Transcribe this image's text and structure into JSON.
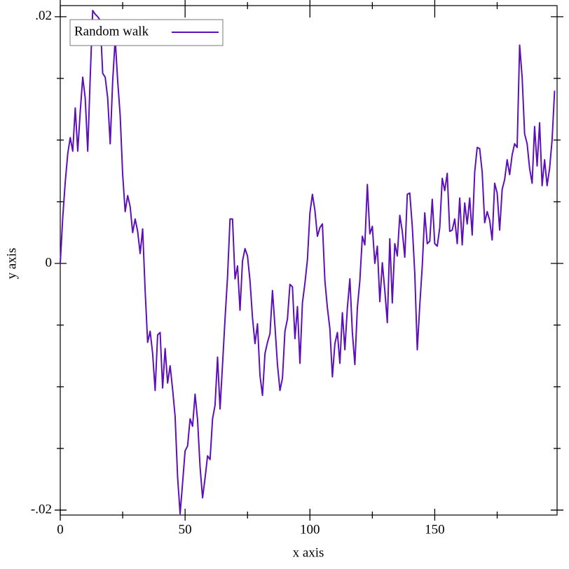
{
  "chart_data": {
    "type": "line",
    "x_label": "x axis",
    "y_label": "y axis",
    "x": [
      0,
      1,
      2,
      3,
      4,
      5,
      6,
      7,
      8,
      9,
      10,
      11,
      12,
      13,
      14,
      15,
      16,
      17,
      18,
      19,
      20,
      21,
      22,
      23,
      24,
      25,
      26,
      27,
      28,
      29,
      30,
      31,
      32,
      33,
      34,
      35,
      36,
      37,
      38,
      39,
      40,
      41,
      42,
      43,
      44,
      45,
      46,
      47,
      48,
      49,
      50,
      51,
      52,
      53,
      54,
      55,
      56,
      57,
      58,
      59,
      60,
      61,
      62,
      63,
      64,
      65,
      66,
      67,
      68,
      69,
      70,
      71,
      72,
      73,
      74,
      75,
      76,
      77,
      78,
      79,
      80,
      81,
      82,
      83,
      84,
      85,
      86,
      87,
      88,
      89,
      90,
      91,
      92,
      93,
      94,
      95,
      96,
      97,
      98,
      99,
      100,
      101,
      102,
      103,
      104,
      105,
      106,
      107,
      108,
      109,
      110,
      111,
      112,
      113,
      114,
      115,
      116,
      117,
      118,
      119,
      120,
      121,
      122,
      123,
      124,
      125,
      126,
      127,
      128,
      129,
      130,
      131,
      132,
      133,
      134,
      135,
      136,
      137,
      138,
      139,
      140,
      141,
      142,
      143,
      144,
      145,
      146,
      147,
      148,
      149,
      150,
      151,
      152,
      153,
      154,
      155,
      156,
      157,
      158,
      159,
      160,
      161,
      162,
      163,
      164,
      165,
      166,
      167,
      168,
      169,
      170,
      171,
      172,
      173,
      174,
      175,
      176,
      177,
      178,
      179,
      180,
      181,
      182,
      183,
      184,
      185,
      186,
      187,
      188,
      189,
      190,
      191,
      192,
      193,
      194,
      195,
      196,
      197,
      198
    ],
    "series": [
      {
        "name": "Random walk",
        "color": "#5c10b8",
        "values": [
          0,
          0.00375,
          0.0066,
          0.0089,
          0.0102,
          0.0091,
          0.0126,
          0.0091,
          0.0123,
          0.0151,
          0.0134,
          0.0091,
          0.0151,
          0.0205,
          0.0202,
          0.02,
          0.0197,
          0.0154,
          0.0151,
          0.0134,
          0.0097,
          0.0148,
          0.0182,
          0.0148,
          0.012,
          0.0072,
          0.0042,
          0.0055,
          0.0046,
          0.0025,
          0.0036,
          0.0026,
          0.0008,
          0.0028,
          -0.0022,
          -0.0064,
          -0.0055,
          -0.0073,
          -0.0103,
          -0.0058,
          -0.0056,
          -0.0101,
          -0.0069,
          -0.0097,
          -0.0083,
          -0.0102,
          -0.0124,
          -0.0173,
          -0.0203,
          -0.0178,
          -0.0152,
          -0.0148,
          -0.0126,
          -0.0132,
          -0.0106,
          -0.0127,
          -0.0165,
          -0.019,
          -0.0174,
          -0.0156,
          -0.0159,
          -0.0126,
          -0.0115,
          -0.0076,
          -0.0118,
          -0.0082,
          -0.0045,
          -0.0011,
          0.0036,
          0.0036,
          -0.00125,
          -0.0002,
          -0.0038,
          0.0002,
          0.0012,
          0.0006,
          -0.0014,
          -0.0044,
          -0.0065,
          -0.0049,
          -0.0091,
          -0.0107,
          -0.0073,
          -0.0064,
          -0.0057,
          -0.0022,
          -0.0051,
          -0.0082,
          -0.0103,
          -0.0093,
          -0.0055,
          -0.0045,
          -0.0017,
          -0.0019,
          -0.0061,
          -0.0035,
          -0.0081,
          -0.0032,
          -0.0016,
          0.0003,
          0.0041,
          0.0056,
          0.0043,
          0.0022,
          0.0029,
          0.0032,
          -0.0014,
          -0.0036,
          -0.0053,
          -0.0092,
          -0.0065,
          -0.0056,
          -0.0081,
          -0.004,
          -0.007,
          -0.0036,
          -0.00125,
          -0.0056,
          -0.0082,
          -0.0036,
          -0.0014,
          0.0022,
          0.0015,
          0.0064,
          0.0024,
          0.003,
          0,
          0.0014,
          -0.0031,
          5e-05,
          -0.0022,
          -0.0048,
          0.002,
          -0.0032,
          0.0016,
          0.0006,
          0.0039,
          0.0026,
          0.0005,
          0.0056,
          0.0057,
          0.003,
          -0.0008,
          -0.007,
          -0.0034,
          -0.0002,
          0.0041,
          0.0016,
          0.0018,
          0.0052,
          0.0016,
          0.0014,
          0.0029,
          0.0069,
          0.0059,
          0.0073,
          0.0026,
          0.0027,
          0.0036,
          0.0016,
          0.0053,
          0.0015,
          0.0049,
          0.0032,
          0.0053,
          0.0023,
          0.0074,
          0.0094,
          0.0093,
          0.0074,
          0.0033,
          0.0042,
          0.0035,
          0.0019,
          0.0065,
          0.0057,
          0.0027,
          0.006,
          0.0068,
          0.0084,
          0.0072,
          0.0088,
          0.0097,
          0.0094,
          0.0177,
          0.0151,
          0.0105,
          0.0097,
          0.0077,
          0.0065,
          0.0111,
          0.0079,
          0.0114,
          0.0063,
          0.0084,
          0.0063,
          0.0077,
          0.01,
          0.014
        ]
      }
    ],
    "xlim": [
      0,
      199
    ],
    "ylim": [
      -0.0204,
      0.0209
    ],
    "xticks": [
      0,
      50,
      100,
      150
    ],
    "xminorticks": [
      25,
      75,
      125,
      175
    ],
    "yticks": [
      {
        "value": -0.02,
        "label": "-.02"
      },
      0,
      {
        "value": 0.02,
        "label": ".02"
      }
    ],
    "yminorticks": [
      -0.015,
      -0.01,
      -0.005,
      0.005,
      0.01,
      0.015
    ],
    "legend": "top-left"
  }
}
